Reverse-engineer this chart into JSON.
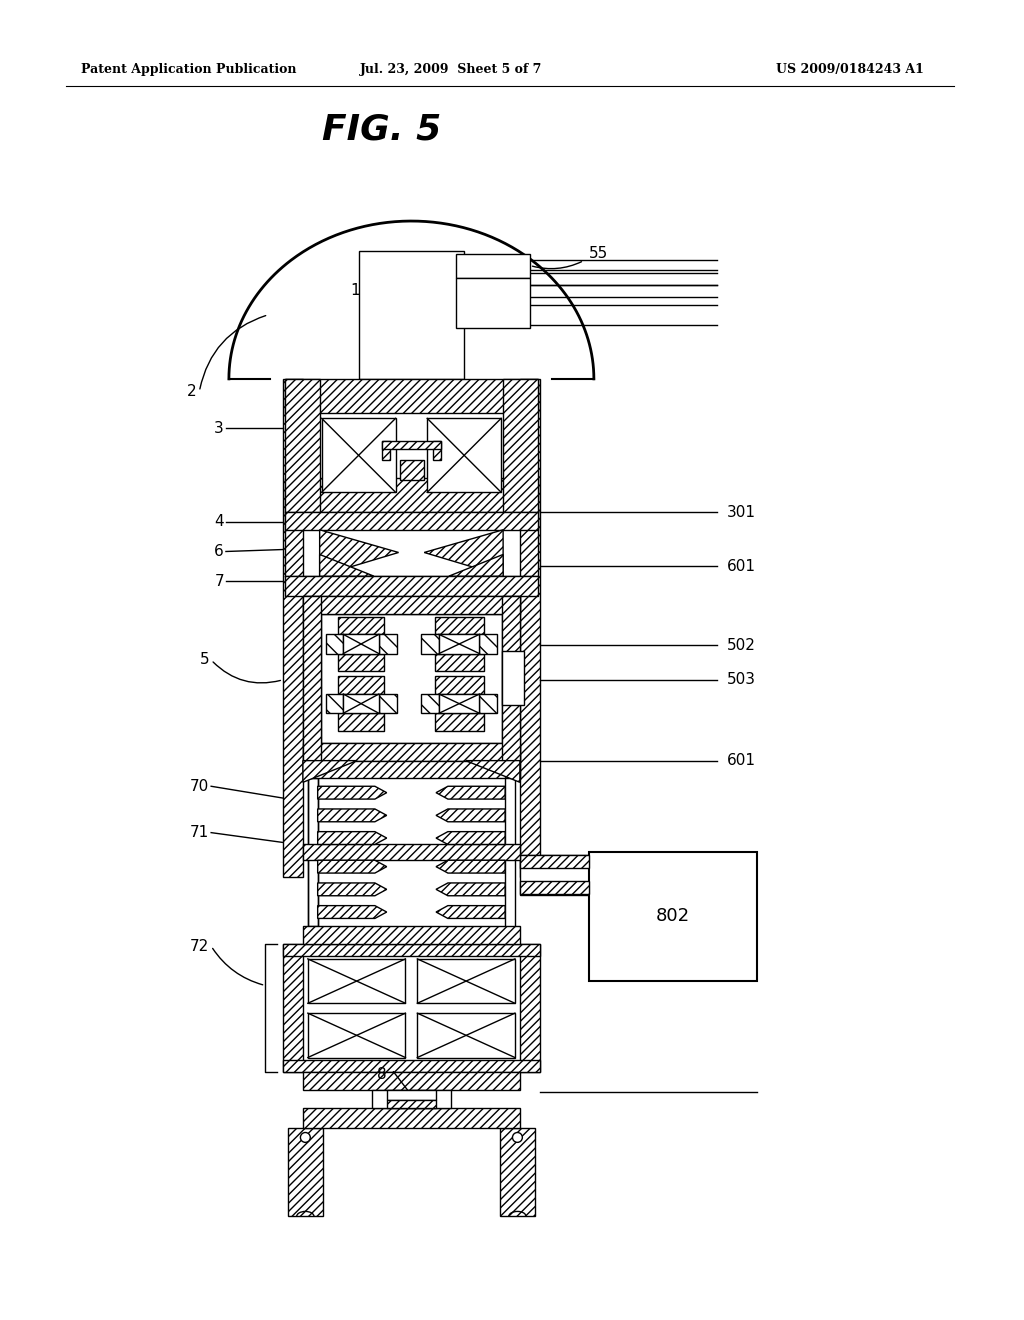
{
  "title": "FIG. 5",
  "header_left": "Patent Application Publication",
  "header_center": "Jul. 23, 2009  Sheet 5 of 7",
  "header_right": "US 2009/0184243 A1",
  "bg_color": "#ffffff",
  "line_color": "#000000",
  "figsize": [
    10.24,
    13.2
  ],
  "dpi": 100
}
